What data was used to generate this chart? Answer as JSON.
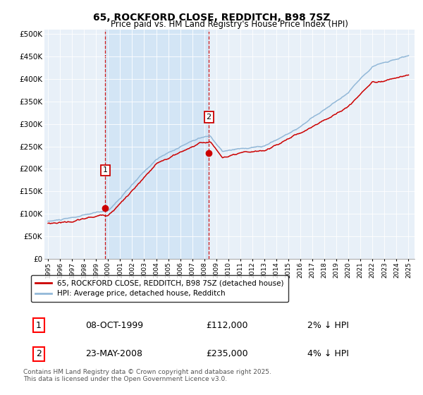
{
  "title": "65, ROCKFORD CLOSE, REDDITCH, B98 7SZ",
  "subtitle": "Price paid vs. HM Land Registry's House Price Index (HPI)",
  "yticks": [
    0,
    50000,
    100000,
    150000,
    200000,
    250000,
    300000,
    350000,
    400000,
    450000,
    500000
  ],
  "ytick_labels": [
    "£0",
    "£50K",
    "£100K",
    "£150K",
    "£200K",
    "£250K",
    "£300K",
    "£350K",
    "£400K",
    "£450K",
    "£500K"
  ],
  "xlim_start": 1994.7,
  "xlim_end": 2025.5,
  "ylim_min": 0,
  "ylim_max": 510000,
  "hpi_color": "#92b8d8",
  "hpi_fill_color": "#d0e4f5",
  "price_color": "#cc0000",
  "vline_color": "#cc0000",
  "background_color": "#e8f0f8",
  "sale1_date": 1999.77,
  "sale1_price": 112000,
  "sale1_label": "1",
  "sale2_date": 2008.38,
  "sale2_price": 235000,
  "sale2_label": "2",
  "legend_label_price": "65, ROCKFORD CLOSE, REDDITCH, B98 7SZ (detached house)",
  "legend_label_hpi": "HPI: Average price, detached house, Redditch",
  "annotation1_date": "08-OCT-1999",
  "annotation1_price": "£112,000",
  "annotation1_pct": "2% ↓ HPI",
  "annotation2_date": "23-MAY-2008",
  "annotation2_price": "£235,000",
  "annotation2_pct": "4% ↓ HPI",
  "footer": "Contains HM Land Registry data © Crown copyright and database right 2025.\nThis data is licensed under the Open Government Licence v3.0.",
  "xtick_years": [
    1995,
    1996,
    1997,
    1998,
    1999,
    2000,
    2001,
    2002,
    2003,
    2004,
    2005,
    2006,
    2007,
    2008,
    2009,
    2010,
    2011,
    2012,
    2013,
    2014,
    2015,
    2016,
    2017,
    2018,
    2019,
    2020,
    2021,
    2022,
    2023,
    2024,
    2025
  ]
}
